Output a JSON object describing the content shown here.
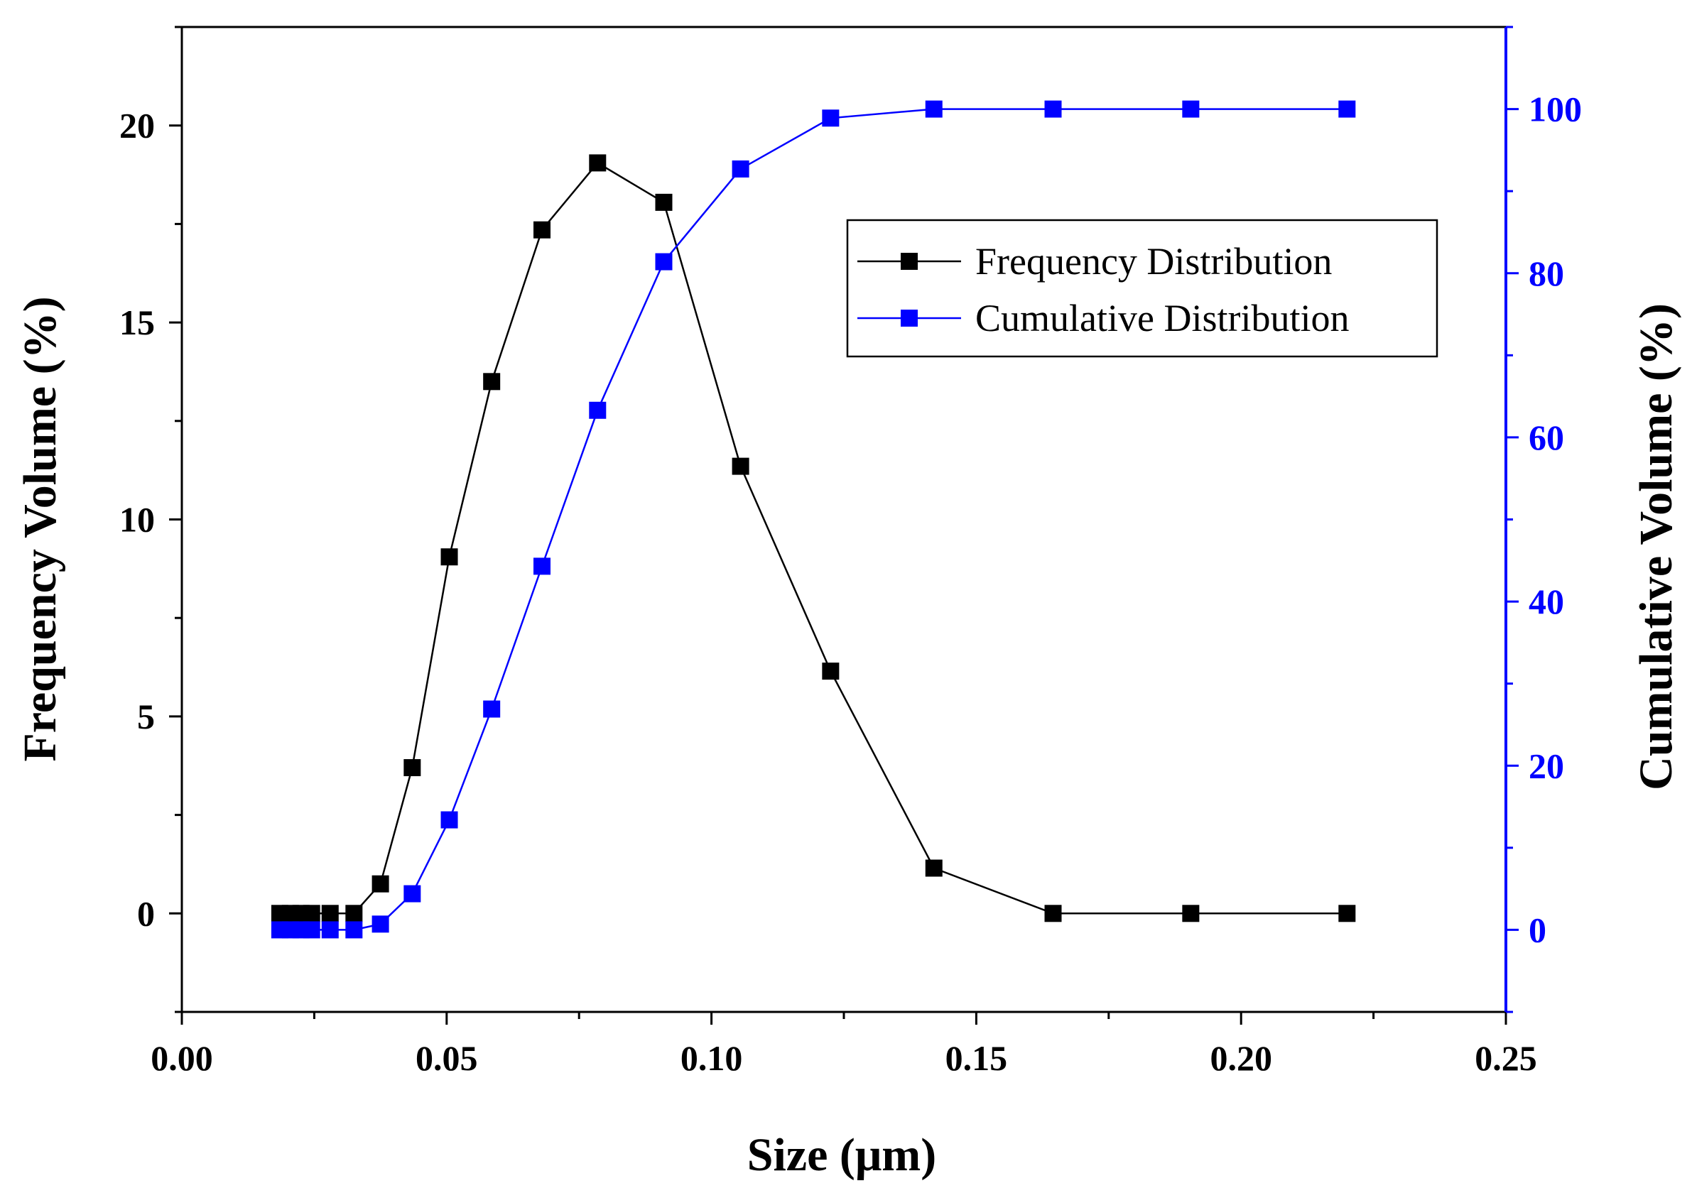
{
  "chart_data": {
    "type": "line",
    "title": "",
    "xlabel": "Size (μm)",
    "ylabel": "Frequency Volume (%)",
    "y2label": "Cumulative Volume (%)",
    "xlim": [
      0.0,
      0.25
    ],
    "ylim": [
      -2.5,
      22.5
    ],
    "y2lim": [
      -10,
      110
    ],
    "xticks": [
      0.0,
      0.05,
      0.1,
      0.15,
      0.2,
      0.25
    ],
    "xtick_labels": [
      "0.00",
      "0.05",
      "0.10",
      "0.15",
      "0.20",
      "0.25"
    ],
    "yticks": [
      0,
      5,
      10,
      15,
      20
    ],
    "ytick_labels": [
      "0",
      "5",
      "10",
      "15",
      "20"
    ],
    "y2ticks": [
      0,
      20,
      40,
      60,
      80,
      100
    ],
    "y2tick_labels": [
      "0",
      "20",
      "40",
      "60",
      "80",
      "100"
    ],
    "grid": false,
    "legend_position": "top-right",
    "x": [
      0.0185,
      0.0205,
      0.0225,
      0.0245,
      0.028,
      0.0325,
      0.0375,
      0.0435,
      0.0505,
      0.0585,
      0.068,
      0.0785,
      0.091,
      0.1055,
      0.1225,
      0.142,
      0.1645,
      0.1905,
      0.22
    ],
    "series": [
      {
        "name": "Frequency Distribution",
        "axis": "left",
        "color": "#000000",
        "values": [
          0,
          0,
          0,
          0,
          0,
          0,
          0.75,
          3.7,
          9.05,
          13.5,
          17.35,
          19.05,
          18.05,
          11.35,
          6.15,
          1.15,
          0,
          0,
          0
        ]
      },
      {
        "name": "Cumulative Distribution",
        "axis": "right",
        "color": "#0000ff",
        "values": [
          0,
          0,
          0,
          0,
          0,
          0,
          0.7,
          4.4,
          13.4,
          26.9,
          44.3,
          63.3,
          81.4,
          92.7,
          98.9,
          100,
          100,
          100,
          100
        ]
      }
    ]
  }
}
